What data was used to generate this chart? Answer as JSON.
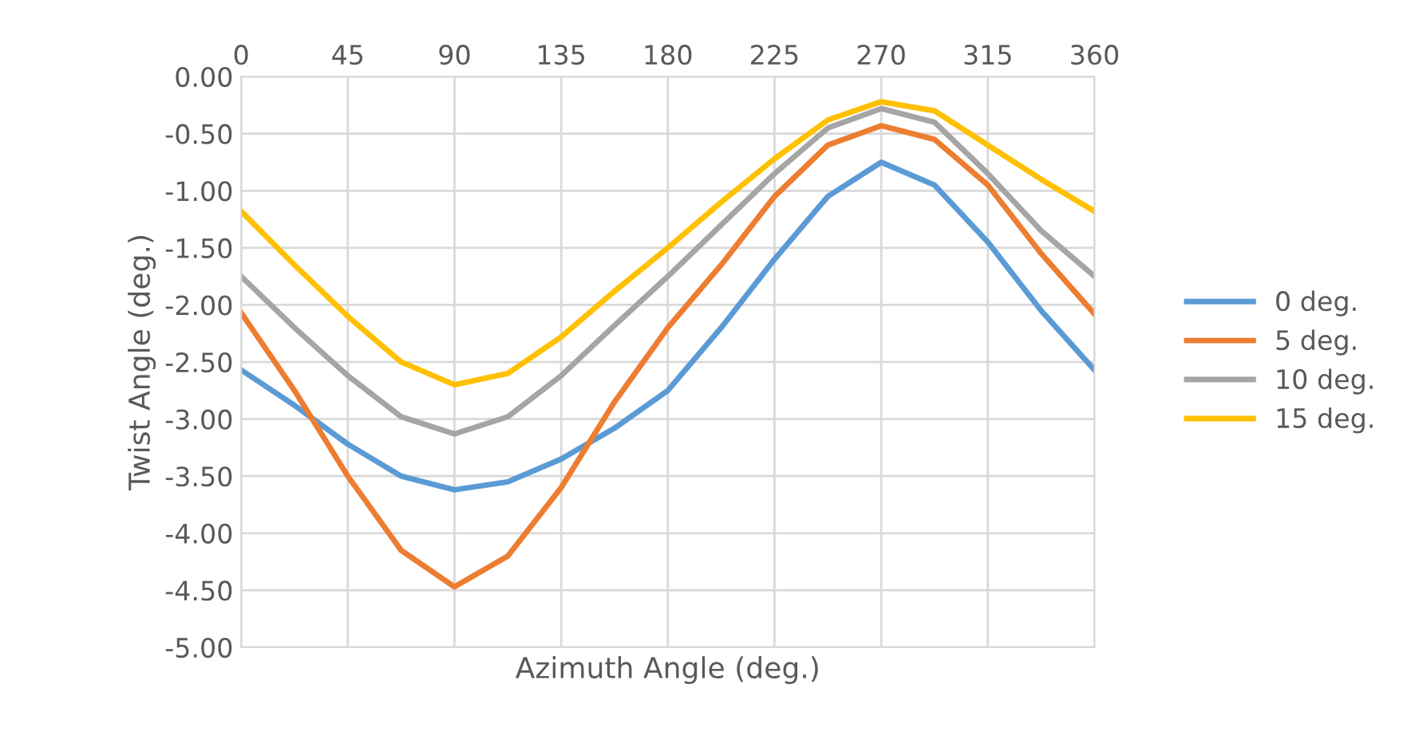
{
  "chart_data": {
    "type": "line",
    "xlabel": "Azimuth Angle (deg.)",
    "ylabel": "Twist Angle (deg.)",
    "x": [
      0,
      22.5,
      45,
      67.5,
      90,
      112.5,
      135,
      157.5,
      180,
      202.5,
      225,
      247.5,
      270,
      292.5,
      315,
      337.5,
      360
    ],
    "series": [
      {
        "name": "0 deg.",
        "color": "#5b9bd5",
        "values": [
          -2.57,
          -2.88,
          -3.22,
          -3.5,
          -3.62,
          -3.55,
          -3.35,
          -3.08,
          -2.75,
          -2.2,
          -1.6,
          -1.05,
          -0.75,
          -0.95,
          -1.45,
          -2.05,
          -2.57
        ]
      },
      {
        "name": "5 deg.",
        "color": "#ed7d31",
        "values": [
          -2.07,
          -2.75,
          -3.5,
          -4.15,
          -4.47,
          -4.2,
          -3.6,
          -2.85,
          -2.2,
          -1.65,
          -1.05,
          -0.6,
          -0.43,
          -0.55,
          -0.95,
          -1.55,
          -2.08
        ]
      },
      {
        "name": "10 deg.",
        "color": "#a5a5a5",
        "values": [
          -1.75,
          -2.2,
          -2.62,
          -2.98,
          -3.13,
          -2.98,
          -2.62,
          -2.18,
          -1.75,
          -1.3,
          -0.85,
          -0.45,
          -0.28,
          -0.4,
          -0.85,
          -1.35,
          -1.75
        ]
      },
      {
        "name": "15 deg.",
        "color": "#ffc000",
        "values": [
          -1.18,
          -1.65,
          -2.1,
          -2.5,
          -2.7,
          -2.6,
          -2.28,
          -1.88,
          -1.5,
          -1.1,
          -0.72,
          -0.38,
          -0.22,
          -0.3,
          -0.6,
          -0.9,
          -1.18
        ]
      }
    ],
    "xlim": [
      0,
      360
    ],
    "xticks": [
      0,
      45,
      90,
      135,
      180,
      225,
      270,
      315,
      360
    ],
    "ylim": [
      -5,
      0
    ],
    "yticks": [
      {
        "value": 0,
        "label": "0.00"
      },
      {
        "value": -0.5,
        "label": "-0.50"
      },
      {
        "value": -1,
        "label": "-1.00"
      },
      {
        "value": -1.5,
        "label": "-1.50"
      },
      {
        "value": -2,
        "label": "-2.00"
      },
      {
        "value": -2.5,
        "label": "-2.50"
      },
      {
        "value": -3,
        "label": "-3.00"
      },
      {
        "value": -3.5,
        "label": "-3.50"
      },
      {
        "value": -4,
        "label": "-4.00"
      },
      {
        "value": -4.5,
        "label": "-4.50"
      },
      {
        "value": -5,
        "label": "-5.00"
      }
    ],
    "grid": true,
    "legend": "right",
    "marker": "none",
    "line_style": "solid"
  }
}
